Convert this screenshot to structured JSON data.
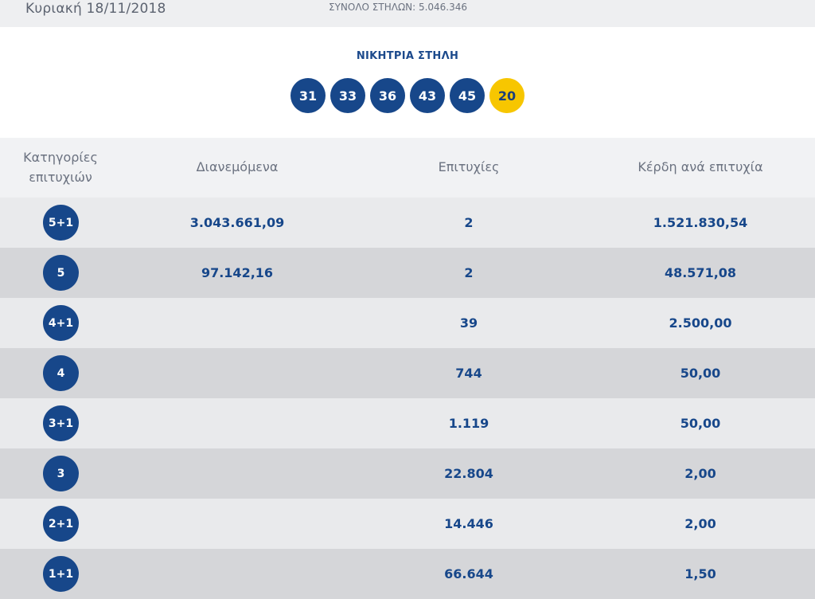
{
  "header": {
    "date": "Κυριακή 18/11/2018",
    "total_columns": "ΣΥΝΟΛΟ ΣΤΗΛΩΝ: 5.046.346"
  },
  "winning": {
    "title": "ΝΙΚΗΤΡΙΑ ΣΤΗΛΗ",
    "numbers": [
      "31",
      "33",
      "36",
      "43",
      "45"
    ],
    "joker": "20"
  },
  "table": {
    "headers": {
      "category": "Κατηγορίες επιτυχιών",
      "distributed": "Διανεμόμενα",
      "hits": "Επιτυχίες",
      "prize": "Κέρδη ανά επιτυχία"
    },
    "rows": [
      {
        "category": "5+1",
        "distributed": "3.043.661,09",
        "hits": "2",
        "prize": "1.521.830,54"
      },
      {
        "category": "5",
        "distributed": "97.142,16",
        "hits": "2",
        "prize": "48.571,08"
      },
      {
        "category": "4+1",
        "distributed": "",
        "hits": "39",
        "prize": "2.500,00"
      },
      {
        "category": "4",
        "distributed": "",
        "hits": "744",
        "prize": "50,00"
      },
      {
        "category": "3+1",
        "distributed": "",
        "hits": "1.119",
        "prize": "50,00"
      },
      {
        "category": "3",
        "distributed": "",
        "hits": "22.804",
        "prize": "2,00"
      },
      {
        "category": "2+1",
        "distributed": "",
        "hits": "14.446",
        "prize": "2,00"
      },
      {
        "category": "1+1",
        "distributed": "",
        "hits": "66.644",
        "prize": "1,50"
      }
    ]
  },
  "colors": {
    "ball_blue": "#17478a",
    "joker_yellow": "#f7c600",
    "row_light": "#e9eaec",
    "row_dark": "#d5d6d9"
  }
}
